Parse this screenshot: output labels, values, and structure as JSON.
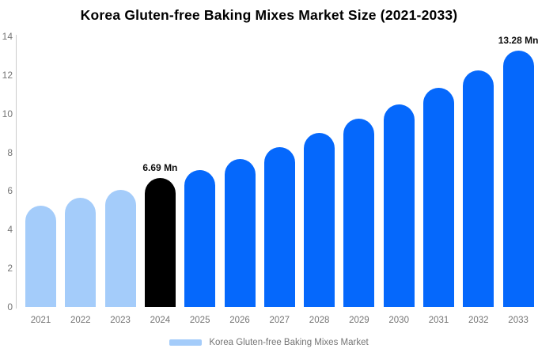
{
  "title": "Korea Gluten-free Baking Mixes Market Size (2021-2033)",
  "legend": {
    "label": "Korea Gluten-free Baking Mixes Market",
    "swatch_color": "#a4ccfa"
  },
  "colors": {
    "historical_bar": "#a4ccfa",
    "base_year_bar": "#000000",
    "forecast_bar": "#0568fc",
    "axis_line": "#cccccc",
    "tick_text": "#757575",
    "title_text": "#000000",
    "value_label_text": "#0d0d0d"
  },
  "chart_data": {
    "type": "bar",
    "title": "Korea Gluten-free Baking Mixes Market Size (2021-2033)",
    "unit": "Mn",
    "xlabel": "",
    "ylabel": "",
    "categories": [
      "2021",
      "2022",
      "2023",
      "2024",
      "2025",
      "2026",
      "2027",
      "2028",
      "2029",
      "2030",
      "2031",
      "2032",
      "2033"
    ],
    "values": [
      5.25,
      5.65,
      6.05,
      6.69,
      7.1,
      7.65,
      8.25,
      9.0,
      9.75,
      10.5,
      11.35,
      12.25,
      13.28
    ],
    "bar_colors": [
      "#a4ccfa",
      "#a4ccfa",
      "#a4ccfa",
      "#000000",
      "#0568fc",
      "#0568fc",
      "#0568fc",
      "#0568fc",
      "#0568fc",
      "#0568fc",
      "#0568fc",
      "#0568fc",
      "#0568fc"
    ],
    "value_labels": [
      {
        "index": 3,
        "text": "6.69 Mn"
      },
      {
        "index": 12,
        "text": "13.28 Mn"
      }
    ],
    "ylim": [
      0,
      14
    ],
    "yticks": [
      0,
      2,
      4,
      6,
      8,
      10,
      12,
      14
    ],
    "grid": false,
    "legend_position": "bottom",
    "legend_entries": [
      "Korea Gluten-free Baking Mixes Market"
    ]
  }
}
